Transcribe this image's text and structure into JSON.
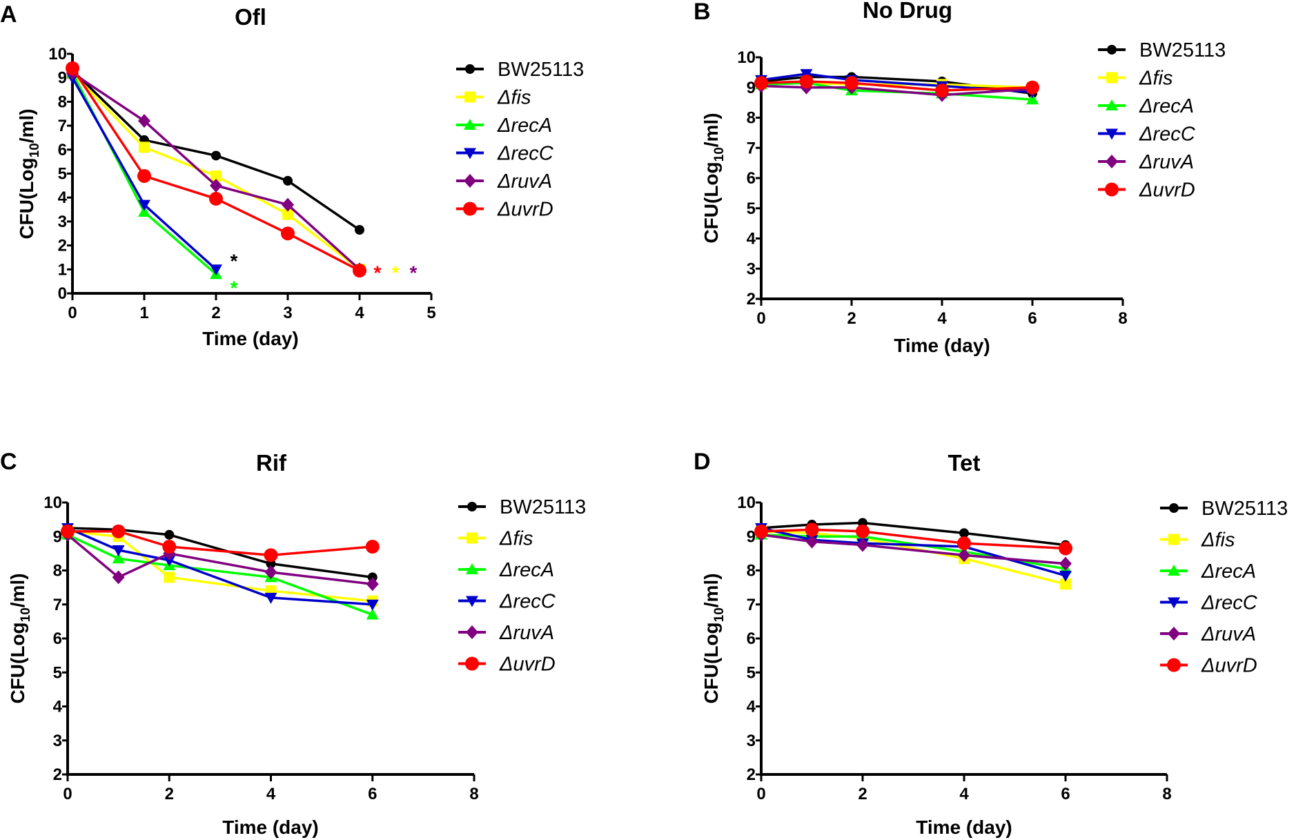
{
  "colors": {
    "BW25113": "#000000",
    "fis": "#FFFF00",
    "recA": "#00FF00",
    "recC": "#0000CC",
    "ruvA": "#800080",
    "uvrD": "#FF0000"
  },
  "chart_data": [
    {
      "panel": "A",
      "type": "line",
      "title": "Ofl",
      "xlabel": "Time (day)",
      "ylabel_parts": [
        "CFU(Log",
        "10",
        "/ml)"
      ],
      "xlim": [
        0,
        5
      ],
      "ylim": [
        0,
        10
      ],
      "xticks": [
        0,
        1,
        2,
        3,
        4,
        5
      ],
      "yticks": [
        0,
        1,
        2,
        3,
        4,
        5,
        6,
        7,
        8,
        9,
        10
      ],
      "legend": "right",
      "grid": false,
      "series": [
        {
          "name": "BW25113",
          "key": "BW25113",
          "marker": "circle",
          "x": [
            0,
            1,
            2,
            3,
            4
          ],
          "y": [
            9.3,
            6.4,
            5.75,
            4.7,
            2.65
          ]
        },
        {
          "name": "Δfis",
          "key": "fis",
          "marker": "square",
          "x": [
            0,
            1,
            2,
            3,
            4
          ],
          "y": [
            9.2,
            6.1,
            4.9,
            3.3,
            1.0
          ]
        },
        {
          "name": "ΔrecA",
          "key": "recA",
          "marker": "triangle-up",
          "x": [
            0,
            1,
            2
          ],
          "y": [
            9.2,
            3.4,
            0.8
          ]
        },
        {
          "name": "ΔrecC",
          "key": "recC",
          "marker": "triangle-down",
          "x": [
            0,
            1,
            2
          ],
          "y": [
            9.0,
            3.7,
            1.0
          ]
        },
        {
          "name": "ΔruvA",
          "key": "ruvA",
          "marker": "diamond",
          "x": [
            0,
            1,
            2,
            3,
            4
          ],
          "y": [
            9.2,
            7.2,
            4.5,
            3.7,
            1.0
          ]
        },
        {
          "name": "ΔuvrD",
          "key": "uvrD",
          "marker": "big-circle",
          "x": [
            0,
            1,
            2,
            3,
            4
          ],
          "y": [
            9.4,
            4.9,
            3.95,
            2.5,
            0.95
          ]
        }
      ],
      "annotations": [
        {
          "text": "*",
          "key": "BW25113",
          "x": 2.25,
          "y": 1.2
        },
        {
          "text": "*",
          "key": "recA",
          "x": 2.25,
          "y": 0.7
        },
        {
          "text": "*",
          "key": "uvrD",
          "x": 4.25,
          "y": 1.0
        },
        {
          "text": "*",
          "key": "fis",
          "x": 4.5,
          "y": 1.0
        },
        {
          "text": "*",
          "key": "ruvA",
          "x": 4.75,
          "y": 1.0
        }
      ]
    },
    {
      "panel": "B",
      "type": "line",
      "title": "No Drug",
      "xlabel": "Time (day)",
      "ylabel_parts": [
        "CFU(Log",
        "10",
        "/ml)"
      ],
      "xlim": [
        0,
        8
      ],
      "ylim": [
        2,
        10
      ],
      "xticks": [
        0,
        2,
        4,
        6,
        8
      ],
      "yticks": [
        2,
        3,
        4,
        5,
        6,
        7,
        8,
        9,
        10
      ],
      "legend": "right",
      "grid": false,
      "series": [
        {
          "name": "BW25113",
          "key": "BW25113",
          "marker": "circle",
          "x": [
            0,
            1,
            2,
            4,
            6
          ],
          "y": [
            9.2,
            9.35,
            9.35,
            9.2,
            8.8
          ]
        },
        {
          "name": "Δfis",
          "key": "fis",
          "marker": "square",
          "x": [
            0,
            1,
            2,
            4,
            6
          ],
          "y": [
            9.15,
            9.15,
            9.1,
            9.1,
            9.0
          ]
        },
        {
          "name": "ΔrecA",
          "key": "recA",
          "marker": "triangle-up",
          "x": [
            0,
            1,
            2,
            4,
            6
          ],
          "y": [
            9.1,
            9.15,
            8.9,
            8.8,
            8.6
          ]
        },
        {
          "name": "ΔrecC",
          "key": "recC",
          "marker": "triangle-down",
          "x": [
            0,
            1,
            2,
            4,
            6
          ],
          "y": [
            9.25,
            9.45,
            9.25,
            9.05,
            8.85
          ]
        },
        {
          "name": "ΔruvA",
          "key": "ruvA",
          "marker": "diamond",
          "x": [
            0,
            1,
            2,
            4,
            6
          ],
          "y": [
            9.05,
            9.0,
            9.0,
            8.75,
            8.95
          ]
        },
        {
          "name": "ΔuvrD",
          "key": "uvrD",
          "marker": "big-circle",
          "x": [
            0,
            1,
            2,
            4,
            6
          ],
          "y": [
            9.15,
            9.2,
            9.15,
            8.9,
            9.0
          ]
        }
      ],
      "annotations": []
    },
    {
      "panel": "C",
      "type": "line",
      "title": "Rif",
      "xlabel": "Time (day)",
      "ylabel_parts": [
        "CFU(Log",
        "10",
        "/ml)"
      ],
      "xlim": [
        0,
        8
      ],
      "ylim": [
        2,
        10
      ],
      "xticks": [
        0,
        2,
        4,
        6,
        8
      ],
      "yticks": [
        2,
        3,
        4,
        5,
        6,
        7,
        8,
        9,
        10
      ],
      "legend": "right",
      "grid": false,
      "series": [
        {
          "name": "BW25113",
          "key": "BW25113",
          "marker": "circle",
          "x": [
            0,
            1,
            2,
            4,
            6
          ],
          "y": [
            9.25,
            9.2,
            9.05,
            8.2,
            7.8
          ]
        },
        {
          "name": "Δfis",
          "key": "fis",
          "marker": "square",
          "x": [
            0,
            1,
            2,
            4,
            6
          ],
          "y": [
            9.15,
            9.0,
            7.8,
            7.4,
            7.1
          ]
        },
        {
          "name": "ΔrecA",
          "key": "recA",
          "marker": "triangle-up",
          "x": [
            0,
            1,
            2,
            4,
            6
          ],
          "y": [
            9.05,
            8.35,
            8.15,
            7.8,
            6.7
          ]
        },
        {
          "name": "ΔrecC",
          "key": "recC",
          "marker": "triangle-down",
          "x": [
            0,
            1,
            2,
            4,
            6
          ],
          "y": [
            9.25,
            8.6,
            8.3,
            7.2,
            7.0
          ]
        },
        {
          "name": "ΔruvA",
          "key": "ruvA",
          "marker": "diamond",
          "x": [
            0,
            1,
            2,
            4,
            6
          ],
          "y": [
            9.05,
            7.8,
            8.5,
            7.95,
            7.6
          ]
        },
        {
          "name": "ΔuvrD",
          "key": "uvrD",
          "marker": "big-circle",
          "x": [
            0,
            1,
            2,
            4,
            6
          ],
          "y": [
            9.15,
            9.15,
            8.7,
            8.45,
            8.7
          ]
        }
      ],
      "annotations": []
    },
    {
      "panel": "D",
      "type": "line",
      "title": "Tet",
      "xlabel": "Time (day)",
      "ylabel_parts": [
        "CFU(Log",
        "10",
        "/ml)"
      ],
      "xlim": [
        0,
        8
      ],
      "ylim": [
        2,
        10
      ],
      "xticks": [
        0,
        2,
        4,
        6,
        8
      ],
      "yticks": [
        2,
        3,
        4,
        5,
        6,
        7,
        8,
        9,
        10
      ],
      "legend": "right",
      "grid": false,
      "series": [
        {
          "name": "BW25113",
          "key": "BW25113",
          "marker": "circle",
          "x": [
            0,
            1,
            2,
            4,
            6
          ],
          "y": [
            9.25,
            9.35,
            9.4,
            9.1,
            8.75
          ]
        },
        {
          "name": "Δfis",
          "key": "fis",
          "marker": "square",
          "x": [
            0,
            1,
            2,
            4,
            6
          ],
          "y": [
            9.15,
            9.1,
            8.95,
            8.35,
            7.6
          ]
        },
        {
          "name": "ΔrecA",
          "key": "recA",
          "marker": "triangle-up",
          "x": [
            0,
            1,
            2,
            4,
            6
          ],
          "y": [
            9.05,
            9.0,
            9.0,
            8.55,
            8.05
          ]
        },
        {
          "name": "ΔrecC",
          "key": "recC",
          "marker": "triangle-down",
          "x": [
            0,
            1,
            2,
            4,
            6
          ],
          "y": [
            9.25,
            8.9,
            8.8,
            8.7,
            7.85
          ]
        },
        {
          "name": "ΔruvA",
          "key": "ruvA",
          "marker": "diamond",
          "x": [
            0,
            1,
            2,
            4,
            6
          ],
          "y": [
            9.05,
            8.85,
            8.75,
            8.45,
            8.2
          ]
        },
        {
          "name": "ΔuvrD",
          "key": "uvrD",
          "marker": "big-circle",
          "x": [
            0,
            1,
            2,
            4,
            6
          ],
          "y": [
            9.15,
            9.2,
            9.15,
            8.8,
            8.65
          ]
        }
      ],
      "annotations": []
    }
  ]
}
